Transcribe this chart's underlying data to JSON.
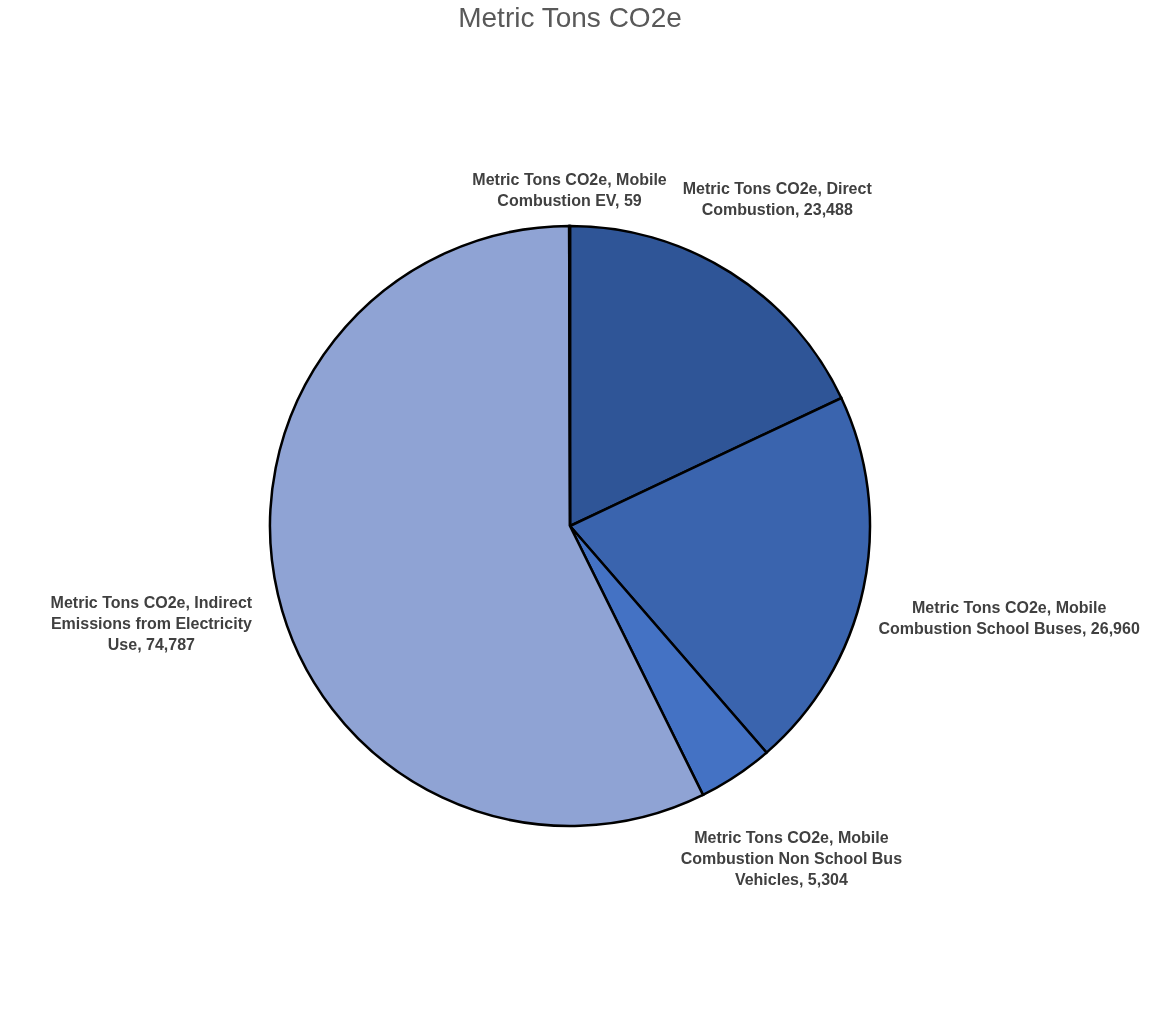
{
  "chart_data": {
    "type": "pie",
    "title": "Metric Tons CO2e",
    "categories": [
      "Metric Tons CO2e, Direct Combustion",
      "Metric Tons CO2e, Mobile Combustion School Buses",
      "Metric Tons CO2e, Mobile Combustion Non School Bus Vehicles",
      "Metric Tons CO2e, Indirect Emissions from Electricity Use",
      "Metric Tons CO2e, Mobile Combustion EV"
    ],
    "values": [
      23488,
      26960,
      5304,
      74787,
      59
    ],
    "value_labels": [
      "23,488",
      "26,960",
      "5,304",
      "74,787",
      "59"
    ],
    "colors": [
      "#2f5597",
      "#3a64ae",
      "#4472c4",
      "#8fa3d4",
      "#203864"
    ],
    "legend": false
  }
}
